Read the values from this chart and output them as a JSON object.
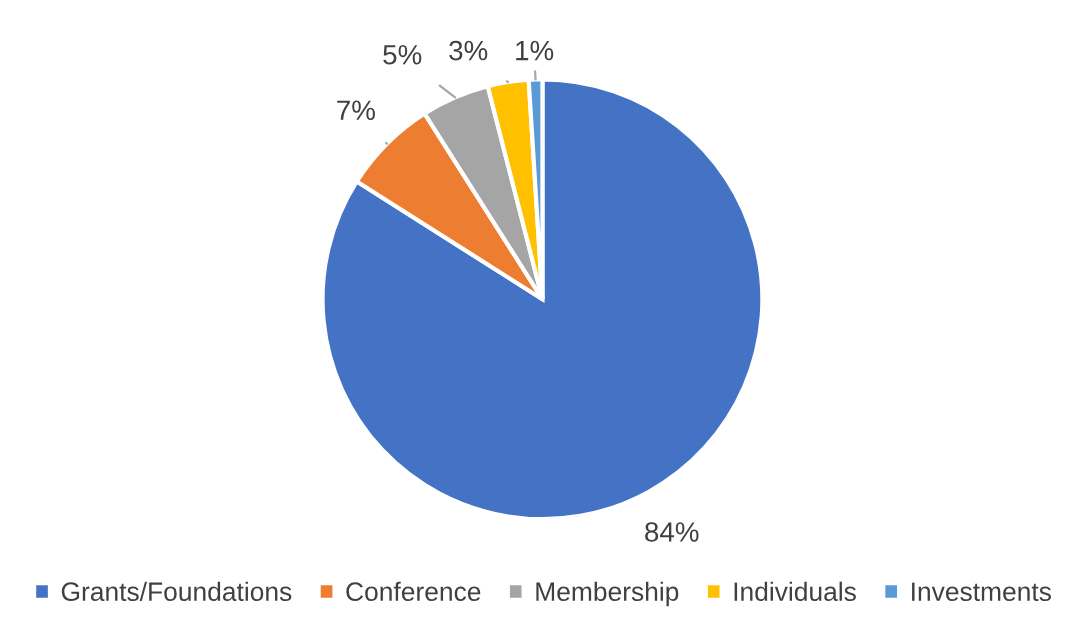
{
  "chart_data": {
    "type": "pie",
    "categories": [
      "Grants/Foundations",
      "Conference",
      "Membership",
      "Individuals",
      "Investments"
    ],
    "values": [
      84,
      7,
      5,
      3,
      1
    ],
    "colors": [
      "#4472c4",
      "#ed7d31",
      "#a5a5a5",
      "#ffc000",
      "#5b9bd5"
    ],
    "value_labels": [
      "84%",
      "7%",
      "5%",
      "3%",
      "1%"
    ],
    "legend": "bottom"
  }
}
